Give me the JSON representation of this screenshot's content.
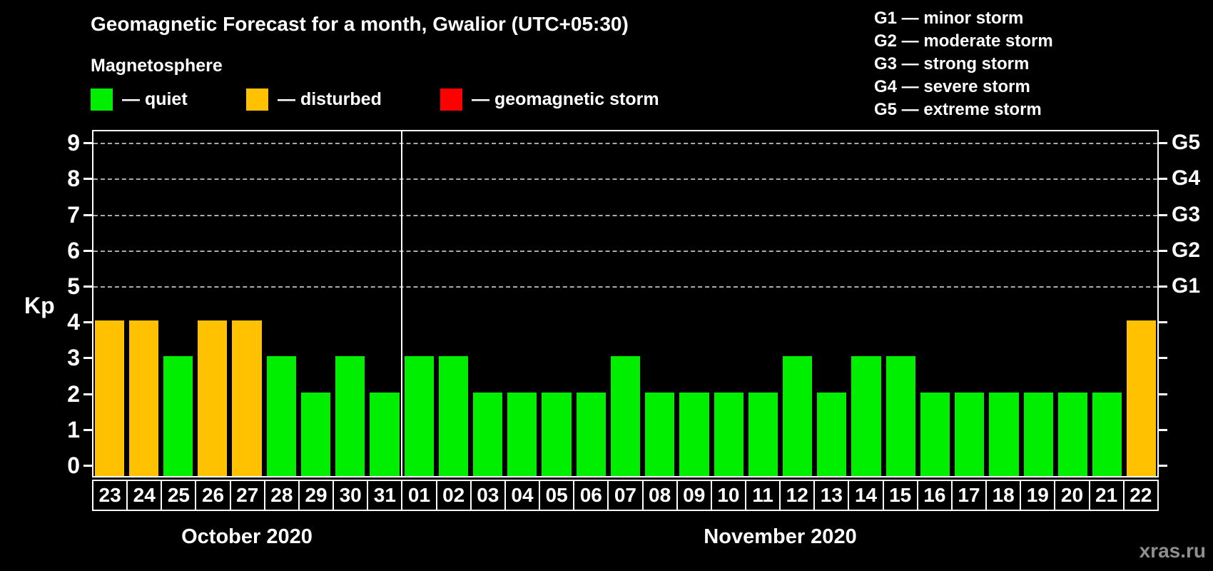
{
  "title": "Geomagnetic Forecast for a month, Gwalior (UTC+05:30)",
  "subtitle": "Magnetosphere",
  "legend": {
    "items": [
      {
        "name": "quiet",
        "label": "— quiet",
        "color": "#00ee00"
      },
      {
        "name": "disturbed",
        "label": "— disturbed",
        "color": "#ffc100"
      },
      {
        "name": "storm",
        "label": "— geomagnetic storm",
        "color": "#ff0000"
      }
    ]
  },
  "g_legend": [
    "G1 — minor storm",
    "G2 — moderate storm",
    "G3 — strong storm",
    "G4 — severe storm",
    "G5 — extreme storm"
  ],
  "watermark": "xras.ru",
  "chart_data": {
    "type": "bar",
    "title": "Geomagnetic Forecast for a month, Gwalior (UTC+05:30)",
    "ylabel": "Kp",
    "ylim": [
      0,
      9
    ],
    "yticks": [
      0,
      1,
      2,
      3,
      4,
      5,
      6,
      7,
      8,
      9
    ],
    "right_axis_labels": [
      {
        "kp": 5,
        "label": "G1"
      },
      {
        "kp": 6,
        "label": "G2"
      },
      {
        "kp": 7,
        "label": "G3"
      },
      {
        "kp": 8,
        "label": "G4"
      },
      {
        "kp": 9,
        "label": "G5"
      }
    ],
    "grid_levels": [
      5,
      6,
      7,
      8,
      9
    ],
    "legend_position": "top",
    "colors": {
      "quiet": "#00ee00",
      "disturbed": "#ffc100",
      "storm": "#ff0000"
    },
    "color_rule": {
      "quiet_max": 3,
      "disturbed_max": 4
    },
    "months": [
      {
        "label": "October 2020",
        "days": [
          "23",
          "24",
          "25",
          "26",
          "27",
          "28",
          "29",
          "30",
          "31"
        ],
        "values": [
          4,
          4,
          3,
          4,
          4,
          3,
          2,
          3,
          2
        ]
      },
      {
        "label": "November 2020",
        "days": [
          "01",
          "02",
          "03",
          "04",
          "05",
          "06",
          "07",
          "08",
          "09",
          "10",
          "11",
          "12",
          "13",
          "14",
          "15",
          "16",
          "17",
          "18",
          "19",
          "20",
          "21",
          "22"
        ],
        "values": [
          3,
          3,
          2,
          2,
          2,
          2,
          3,
          2,
          2,
          2,
          2,
          3,
          2,
          3,
          3,
          2,
          2,
          2,
          2,
          2,
          2,
          4
        ]
      }
    ]
  }
}
